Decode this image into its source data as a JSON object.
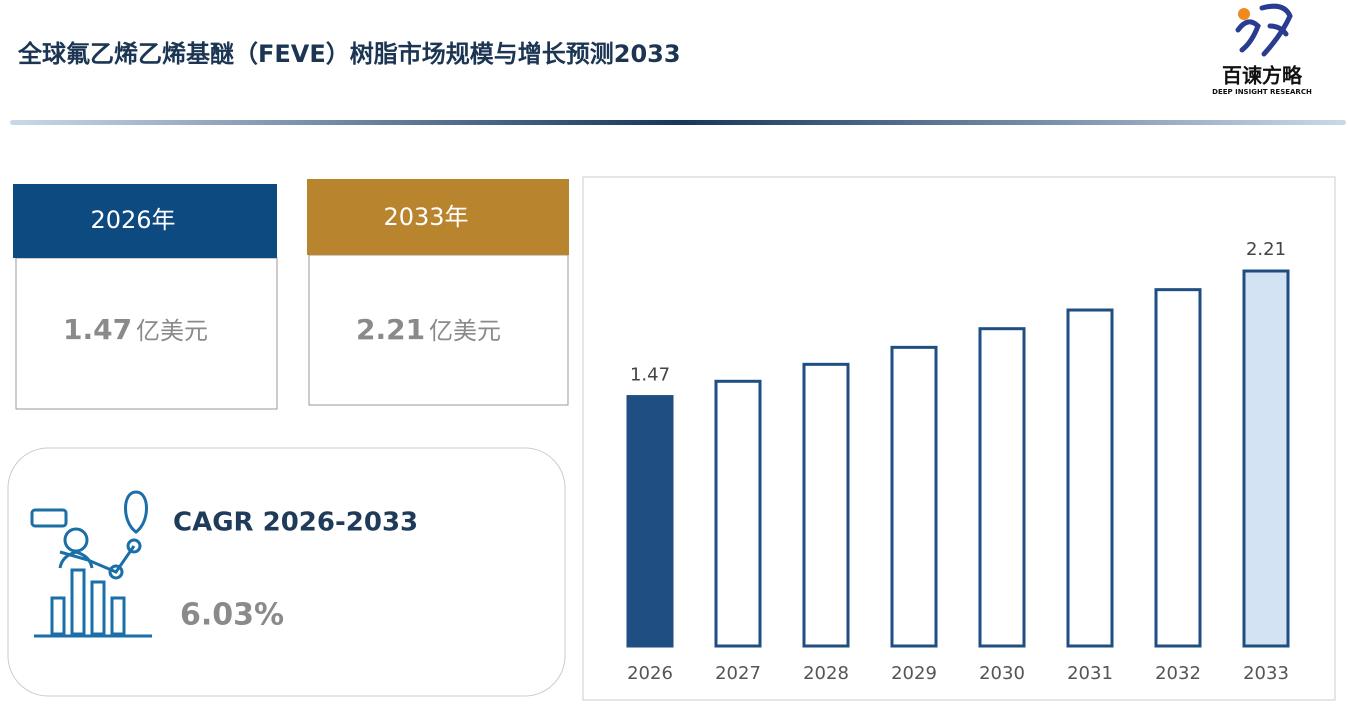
{
  "header": {
    "title": "全球氟乙烯乙烯基醚（FEVE）树脂市场规模与增长预测2033",
    "logo": {
      "name": "百谏方略",
      "tagline": "DEEP INSIGHT RESEARCH"
    }
  },
  "cards": [
    {
      "label": "2026年",
      "value": "1.47",
      "unit": "亿美元"
    },
    {
      "label": "2033年",
      "value": "2.21",
      "unit": "亿美元"
    }
  ],
  "cagr": {
    "label": "CAGR 2026-2033",
    "value": "6.03%"
  },
  "chart_data": {
    "type": "bar",
    "categories": [
      "2026",
      "2027",
      "2028",
      "2029",
      "2030",
      "2031",
      "2032",
      "2033"
    ],
    "values": [
      1.47,
      1.56,
      1.66,
      1.76,
      1.87,
      1.98,
      2.1,
      2.21
    ],
    "colors": [
      "#1f4e83",
      "#ffffff",
      "#ffffff",
      "#ffffff",
      "#ffffff",
      "#ffffff",
      "#ffffff",
      "#d3e3f4"
    ],
    "stroke": "#1f4e83",
    "labeled": [
      0,
      7
    ]
  }
}
